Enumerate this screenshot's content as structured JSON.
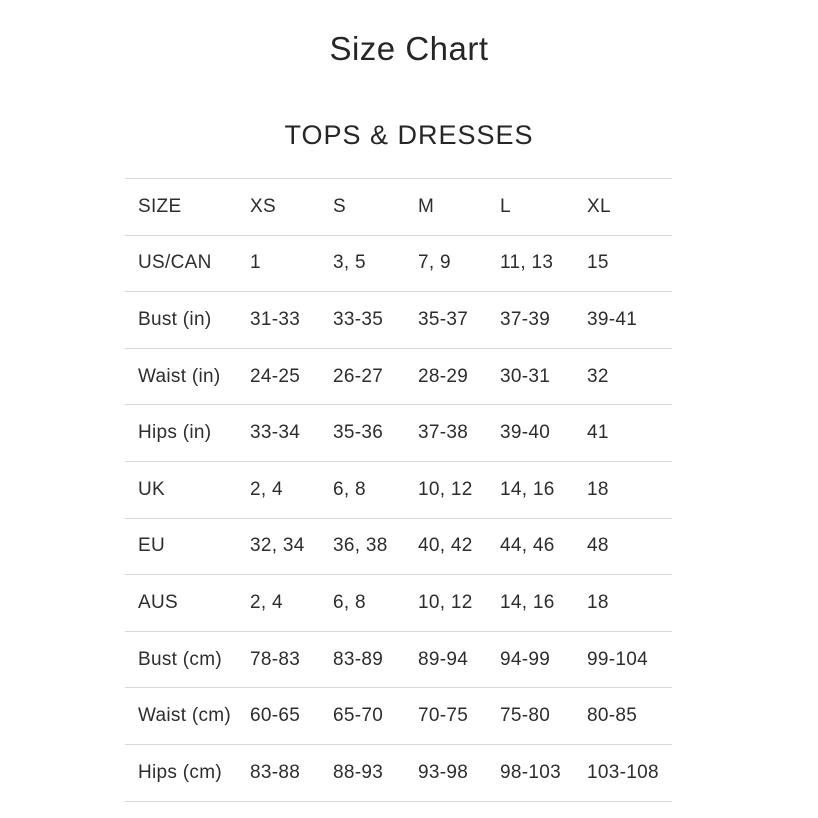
{
  "page": {
    "title": "Size Chart",
    "section_title": "TOPS & DRESSES"
  },
  "colors": {
    "text": "#2d2d2d",
    "row_border": "#d9d9d9",
    "background": "#ffffff"
  },
  "size_table": {
    "columns": [
      "SIZE",
      "XS",
      "S",
      "M",
      "L",
      "XL"
    ],
    "rows": [
      {
        "label": "US/CAN",
        "values": [
          "1",
          "3, 5",
          "7, 9",
          "11, 13",
          "15"
        ]
      },
      {
        "label": "Bust (in)",
        "values": [
          "31-33",
          "33-35",
          "35-37",
          "37-39",
          "39-41"
        ]
      },
      {
        "label": "Waist (in)",
        "values": [
          "24-25",
          "26-27",
          "28-29",
          "30-31",
          "32"
        ]
      },
      {
        "label": "Hips (in)",
        "values": [
          "33-34",
          "35-36",
          "37-38",
          "39-40",
          "41"
        ]
      },
      {
        "label": "UK",
        "values": [
          "2, 4",
          "6, 8",
          "10, 12",
          "14, 16",
          "18"
        ]
      },
      {
        "label": "EU",
        "values": [
          "32, 34",
          "36, 38",
          "40, 42",
          "44, 46",
          "48"
        ]
      },
      {
        "label": "AUS",
        "values": [
          "2, 4",
          "6, 8",
          "10, 12",
          "14, 16",
          "18"
        ]
      },
      {
        "label": "Bust (cm)",
        "values": [
          "78-83",
          "83-89",
          "89-94",
          "94-99",
          "99-104"
        ]
      },
      {
        "label": "Waist (cm)",
        "values": [
          "60-65",
          "65-70",
          "70-75",
          "75-80",
          "80-85"
        ]
      },
      {
        "label": "Hips (cm)",
        "values": [
          "83-88",
          "88-93",
          "93-98",
          "98-103",
          "103-108"
        ]
      }
    ]
  }
}
